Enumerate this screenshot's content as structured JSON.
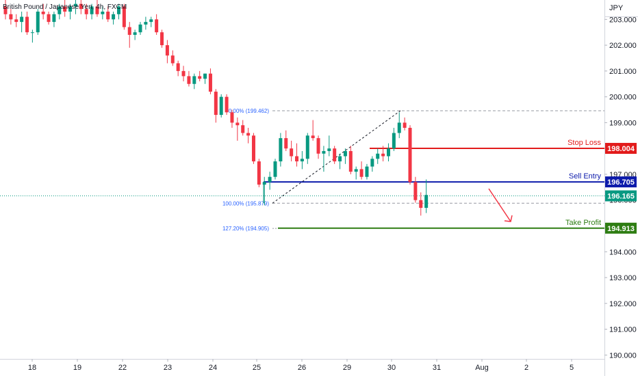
{
  "chart_data": {
    "type": "candlestick",
    "title": "British Pound / Japanese Yen, 4h, FXCM",
    "currency": "JPY",
    "ylim": [
      189.85,
      203.75
    ],
    "y_ticks": [
      "203.000",
      "202.000",
      "201.000",
      "200.000",
      "199.000",
      "198.000",
      "197.000",
      "196.000",
      "195.000",
      "194.000",
      "193.000",
      "192.000",
      "191.000",
      "190.000"
    ],
    "x_ticks": [
      "18",
      "19",
      "22",
      "23",
      "24",
      "25",
      "26",
      "29",
      "30",
      "31",
      "Aug",
      "2",
      "5"
    ],
    "colors": {
      "up": "#089981",
      "down": "#f23645",
      "entry": "#0d1bab",
      "stop": "#e21b1b",
      "target": "#2e7d12",
      "fib": "#2962ff",
      "current": "#089981"
    },
    "candles": [
      [
        203.5,
        203.8,
        203.0,
        203.2
      ],
      [
        203.2,
        203.4,
        202.8,
        203.0
      ],
      [
        203.0,
        203.2,
        202.7,
        202.9
      ],
      [
        202.9,
        203.3,
        202.5,
        203.1
      ],
      [
        203.1,
        203.3,
        202.4,
        202.5
      ],
      [
        202.5,
        202.6,
        202.1,
        202.5
      ],
      [
        202.5,
        203.4,
        202.4,
        203.3
      ],
      [
        203.3,
        203.6,
        203.0,
        203.2
      ],
      [
        203.2,
        203.3,
        202.8,
        202.9
      ],
      [
        202.9,
        203.3,
        202.7,
        203.2
      ],
      [
        203.2,
        203.6,
        203.0,
        203.5
      ],
      [
        203.5,
        203.8,
        203.1,
        203.3
      ],
      [
        203.3,
        203.6,
        203.0,
        203.5
      ],
      [
        203.5,
        203.8,
        203.2,
        203.6
      ],
      [
        203.6,
        203.8,
        203.2,
        203.4
      ],
      [
        203.4,
        203.6,
        203.0,
        203.2
      ],
      [
        203.2,
        203.6,
        203.0,
        203.5
      ],
      [
        203.5,
        203.8,
        203.1,
        203.2
      ],
      [
        203.2,
        203.5,
        203.0,
        203.3
      ],
      [
        203.3,
        203.5,
        202.9,
        203.0
      ],
      [
        203.0,
        203.3,
        202.8,
        203.2
      ],
      [
        203.2,
        203.6,
        203.0,
        203.5
      ],
      [
        203.5,
        203.6,
        202.6,
        202.7
      ],
      [
        202.7,
        202.9,
        201.9,
        202.4
      ],
      [
        202.4,
        202.6,
        202.2,
        202.5
      ],
      [
        202.5,
        202.9,
        202.4,
        202.8
      ],
      [
        202.8,
        203.1,
        202.6,
        202.9
      ],
      [
        202.9,
        203.1,
        202.7,
        203.0
      ],
      [
        203.0,
        203.2,
        202.4,
        202.5
      ],
      [
        202.5,
        202.6,
        201.9,
        202.0
      ],
      [
        202.0,
        202.2,
        201.3,
        201.6
      ],
      [
        201.6,
        201.8,
        201.2,
        201.3
      ],
      [
        201.3,
        201.4,
        200.8,
        201.0
      ],
      [
        201.0,
        201.2,
        200.6,
        200.8
      ],
      [
        200.8,
        201.0,
        200.4,
        200.5
      ],
      [
        200.5,
        200.9,
        200.3,
        200.8
      ],
      [
        200.8,
        201.0,
        200.6,
        200.7
      ],
      [
        200.7,
        200.9,
        200.5,
        200.9
      ],
      [
        200.9,
        201.1,
        200.1,
        200.2
      ],
      [
        200.2,
        200.3,
        199.0,
        199.3
      ],
      [
        199.3,
        200.1,
        199.2,
        200.0
      ],
      [
        200.0,
        200.1,
        199.3,
        199.4
      ],
      [
        199.4,
        199.5,
        198.8,
        199.0
      ],
      [
        199.0,
        199.2,
        198.3,
        198.9
      ],
      [
        198.9,
        199.1,
        198.5,
        198.6
      ],
      [
        198.6,
        198.8,
        198.2,
        198.5
      ],
      [
        198.5,
        198.6,
        197.4,
        197.5
      ],
      [
        197.5,
        197.6,
        196.5,
        196.6
      ],
      [
        196.6,
        196.9,
        195.8,
        196.7
      ],
      [
        196.7,
        197.1,
        196.4,
        196.9
      ],
      [
        196.9,
        197.6,
        196.8,
        197.5
      ],
      [
        197.5,
        198.6,
        197.3,
        198.4
      ],
      [
        198.4,
        198.7,
        197.9,
        198.0
      ],
      [
        198.0,
        198.3,
        197.5,
        197.7
      ],
      [
        197.7,
        198.2,
        197.3,
        197.5
      ],
      [
        197.5,
        197.9,
        197.2,
        197.6
      ],
      [
        197.6,
        198.6,
        197.4,
        198.5
      ],
      [
        198.5,
        199.1,
        198.3,
        198.4
      ],
      [
        198.4,
        198.5,
        197.6,
        197.8
      ],
      [
        197.8,
        198.1,
        197.1,
        197.9
      ],
      [
        197.9,
        198.5,
        197.7,
        198.0
      ],
      [
        198.0,
        198.1,
        197.4,
        197.5
      ],
      [
        197.5,
        197.8,
        197.2,
        197.7
      ],
      [
        197.7,
        198.0,
        197.4,
        197.9
      ],
      [
        197.9,
        198.1,
        197.0,
        197.1
      ],
      [
        197.1,
        197.3,
        196.8,
        197.2
      ],
      [
        197.2,
        197.5,
        196.8,
        196.9
      ],
      [
        196.9,
        197.4,
        196.8,
        197.3
      ],
      [
        197.3,
        197.7,
        197.1,
        197.6
      ],
      [
        197.6,
        198.0,
        197.4,
        197.8
      ],
      [
        197.8,
        198.1,
        197.5,
        197.7
      ],
      [
        197.7,
        198.2,
        197.5,
        198.0
      ],
      [
        198.0,
        198.8,
        197.9,
        198.6
      ],
      [
        198.6,
        199.4,
        198.4,
        199.0
      ],
      [
        199.0,
        199.2,
        198.7,
        198.8
      ],
      [
        198.8,
        198.9,
        196.6,
        196.7
      ],
      [
        196.7,
        196.9,
        195.9,
        196.0
      ],
      [
        196.0,
        196.3,
        195.4,
        195.7
      ],
      [
        195.7,
        196.8,
        195.5,
        196.2
      ]
    ],
    "levels": {
      "stop_loss": {
        "label": "Stop Loss",
        "value": 198.004,
        "value_text": "198.004"
      },
      "sell_entry": {
        "label": "Sell Entry",
        "value": 196.705,
        "value_text": "196.705"
      },
      "take_profit": {
        "label": "Take Profit",
        "value": 194.913,
        "value_text": "194.913"
      },
      "current_price": {
        "value": 196.165,
        "value_text": "196.165"
      }
    },
    "fib": [
      {
        "label": "0.00% (199.462)",
        "value": 199.462
      },
      {
        "label": "100.00% (195.879)",
        "value": 195.879
      },
      {
        "label": "127.20% (194.905)",
        "value": 194.905
      }
    ]
  }
}
